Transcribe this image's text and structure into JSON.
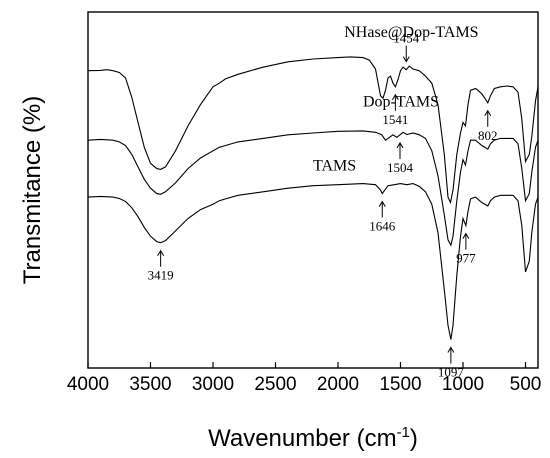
{
  "chart_data": {
    "type": "line",
    "xlabel": "Wavenumber (cm",
    "xlabel_superscript": "-1",
    "xlabel_suffix": ")",
    "ylabel": "Transmitance (%)",
    "xlim": [
      4000,
      400
    ],
    "x_reversed": true,
    "y_ticks_shown": false,
    "x_ticks": [
      4000,
      3500,
      3000,
      2500,
      2000,
      1500,
      1000,
      500
    ],
    "grid": false,
    "series": [
      {
        "name": "NHase@Dop-TAMS",
        "label_anchor": [
          1950,
          0.93
        ],
        "points": [
          [
            4000,
            0.835
          ],
          [
            3900,
            0.836
          ],
          [
            3850,
            0.838
          ],
          [
            3800,
            0.835
          ],
          [
            3750,
            0.83
          ],
          [
            3700,
            0.815
          ],
          [
            3650,
            0.76
          ],
          [
            3600,
            0.69
          ],
          [
            3550,
            0.62
          ],
          [
            3500,
            0.575
          ],
          [
            3450,
            0.56
          ],
          [
            3419,
            0.558
          ],
          [
            3380,
            0.565
          ],
          [
            3300,
            0.61
          ],
          [
            3200,
            0.68
          ],
          [
            3100,
            0.74
          ],
          [
            3000,
            0.79
          ],
          [
            2950,
            0.8
          ],
          [
            2900,
            0.812
          ],
          [
            2800,
            0.825
          ],
          [
            2600,
            0.845
          ],
          [
            2400,
            0.86
          ],
          [
            2200,
            0.868
          ],
          [
            2000,
            0.872
          ],
          [
            1900,
            0.874
          ],
          [
            1800,
            0.872
          ],
          [
            1750,
            0.865
          ],
          [
            1700,
            0.84
          ],
          [
            1660,
            0.765
          ],
          [
            1640,
            0.758
          ],
          [
            1620,
            0.78
          ],
          [
            1600,
            0.815
          ],
          [
            1580,
            0.82
          ],
          [
            1560,
            0.8
          ],
          [
            1541,
            0.79
          ],
          [
            1520,
            0.81
          ],
          [
            1500,
            0.835
          ],
          [
            1480,
            0.845
          ],
          [
            1454,
            0.838
          ],
          [
            1430,
            0.848
          ],
          [
            1400,
            0.84
          ],
          [
            1350,
            0.835
          ],
          [
            1300,
            0.82
          ],
          [
            1250,
            0.8
          ],
          [
            1200,
            0.74
          ],
          [
            1150,
            0.6
          ],
          [
            1120,
            0.48
          ],
          [
            1100,
            0.465
          ],
          [
            1080,
            0.5
          ],
          [
            1050,
            0.6
          ],
          [
            1020,
            0.66
          ],
          [
            1000,
            0.69
          ],
          [
            980,
            0.68
          ],
          [
            960,
            0.74
          ],
          [
            940,
            0.78
          ],
          [
            900,
            0.785
          ],
          [
            880,
            0.78
          ],
          [
            850,
            0.77
          ],
          [
            820,
            0.755
          ],
          [
            802,
            0.745
          ],
          [
            780,
            0.765
          ],
          [
            750,
            0.785
          ],
          [
            700,
            0.79
          ],
          [
            650,
            0.792
          ],
          [
            600,
            0.79
          ],
          [
            560,
            0.775
          ],
          [
            530,
            0.7
          ],
          [
            500,
            0.58
          ],
          [
            470,
            0.6
          ],
          [
            450,
            0.65
          ],
          [
            420,
            0.75
          ],
          [
            400,
            0.79
          ]
        ]
      },
      {
        "name": "Dop-TAMS",
        "label_anchor": [
          1800,
          0.735
        ],
        "points": [
          [
            4000,
            0.64
          ],
          [
            3900,
            0.642
          ],
          [
            3800,
            0.64
          ],
          [
            3750,
            0.635
          ],
          [
            3700,
            0.625
          ],
          [
            3650,
            0.6
          ],
          [
            3600,
            0.565
          ],
          [
            3550,
            0.53
          ],
          [
            3500,
            0.505
          ],
          [
            3450,
            0.49
          ],
          [
            3419,
            0.488
          ],
          [
            3380,
            0.495
          ],
          [
            3300,
            0.52
          ],
          [
            3200,
            0.56
          ],
          [
            3100,
            0.59
          ],
          [
            3000,
            0.61
          ],
          [
            2950,
            0.62
          ],
          [
            2900,
            0.625
          ],
          [
            2800,
            0.635
          ],
          [
            2600,
            0.645
          ],
          [
            2400,
            0.655
          ],
          [
            2200,
            0.66
          ],
          [
            2000,
            0.665
          ],
          [
            1800,
            0.666
          ],
          [
            1700,
            0.662
          ],
          [
            1650,
            0.655
          ],
          [
            1620,
            0.64
          ],
          [
            1600,
            0.645
          ],
          [
            1560,
            0.655
          ],
          [
            1530,
            0.648
          ],
          [
            1504,
            0.655
          ],
          [
            1480,
            0.662
          ],
          [
            1450,
            0.656
          ],
          [
            1400,
            0.66
          ],
          [
            1350,
            0.655
          ],
          [
            1300,
            0.645
          ],
          [
            1250,
            0.61
          ],
          [
            1200,
            0.54
          ],
          [
            1150,
            0.43
          ],
          [
            1120,
            0.36
          ],
          [
            1097,
            0.345
          ],
          [
            1080,
            0.37
          ],
          [
            1050,
            0.47
          ],
          [
            1020,
            0.55
          ],
          [
            1000,
            0.585
          ],
          [
            980,
            0.57
          ],
          [
            960,
            0.61
          ],
          [
            940,
            0.64
          ],
          [
            900,
            0.64
          ],
          [
            850,
            0.625
          ],
          [
            802,
            0.615
          ],
          [
            780,
            0.63
          ],
          [
            750,
            0.64
          ],
          [
            700,
            0.645
          ],
          [
            600,
            0.645
          ],
          [
            560,
            0.63
          ],
          [
            530,
            0.56
          ],
          [
            500,
            0.47
          ],
          [
            470,
            0.49
          ],
          [
            450,
            0.55
          ],
          [
            420,
            0.62
          ],
          [
            400,
            0.64
          ]
        ]
      },
      {
        "name": "TAMS",
        "label_anchor": [
          2200,
          0.555
        ],
        "points": [
          [
            4000,
            0.48
          ],
          [
            3900,
            0.482
          ],
          [
            3800,
            0.48
          ],
          [
            3750,
            0.476
          ],
          [
            3700,
            0.468
          ],
          [
            3650,
            0.45
          ],
          [
            3600,
            0.425
          ],
          [
            3550,
            0.395
          ],
          [
            3500,
            0.37
          ],
          [
            3450,
            0.355
          ],
          [
            3419,
            0.352
          ],
          [
            3380,
            0.358
          ],
          [
            3300,
            0.385
          ],
          [
            3200,
            0.42
          ],
          [
            3100,
            0.445
          ],
          [
            3000,
            0.46
          ],
          [
            2950,
            0.47
          ],
          [
            2900,
            0.475
          ],
          [
            2800,
            0.485
          ],
          [
            2600,
            0.495
          ],
          [
            2400,
            0.505
          ],
          [
            2200,
            0.512
          ],
          [
            2000,
            0.515
          ],
          [
            1800,
            0.518
          ],
          [
            1700,
            0.515
          ],
          [
            1660,
            0.5
          ],
          [
            1646,
            0.49
          ],
          [
            1630,
            0.498
          ],
          [
            1600,
            0.512
          ],
          [
            1550,
            0.515
          ],
          [
            1500,
            0.518
          ],
          [
            1450,
            0.515
          ],
          [
            1400,
            0.518
          ],
          [
            1350,
            0.51
          ],
          [
            1300,
            0.495
          ],
          [
            1250,
            0.46
          ],
          [
            1200,
            0.38
          ],
          [
            1150,
            0.22
          ],
          [
            1120,
            0.12
          ],
          [
            1097,
            0.08
          ],
          [
            1080,
            0.12
          ],
          [
            1050,
            0.26
          ],
          [
            1020,
            0.37
          ],
          [
            1000,
            0.42
          ],
          [
            977,
            0.4
          ],
          [
            960,
            0.44
          ],
          [
            940,
            0.475
          ],
          [
            900,
            0.48
          ],
          [
            850,
            0.465
          ],
          [
            802,
            0.455
          ],
          [
            780,
            0.47
          ],
          [
            750,
            0.48
          ],
          [
            700,
            0.485
          ],
          [
            600,
            0.485
          ],
          [
            560,
            0.47
          ],
          [
            530,
            0.4
          ],
          [
            500,
            0.27
          ],
          [
            470,
            0.3
          ],
          [
            450,
            0.38
          ],
          [
            420,
            0.46
          ],
          [
            400,
            0.48
          ]
        ]
      }
    ],
    "annotations": [
      {
        "text": "1454",
        "x": 1454,
        "series": 0,
        "dir": "up"
      },
      {
        "text": "1541",
        "x": 1541,
        "series": 0,
        "dir": "down"
      },
      {
        "text": "802",
        "x": 802,
        "series": 0,
        "dir": "down"
      },
      {
        "text": "1504",
        "x": 1504,
        "series": 1,
        "dir": "down"
      },
      {
        "text": "1646",
        "x": 1646,
        "series": 2,
        "dir": "down"
      },
      {
        "text": "977",
        "x": 977,
        "series": 2,
        "dir": "down"
      },
      {
        "text": "3419",
        "x": 3419,
        "series": 2,
        "dir": "down"
      },
      {
        "text": "1097",
        "x": 1097,
        "series": 2,
        "dir": "down"
      }
    ]
  }
}
